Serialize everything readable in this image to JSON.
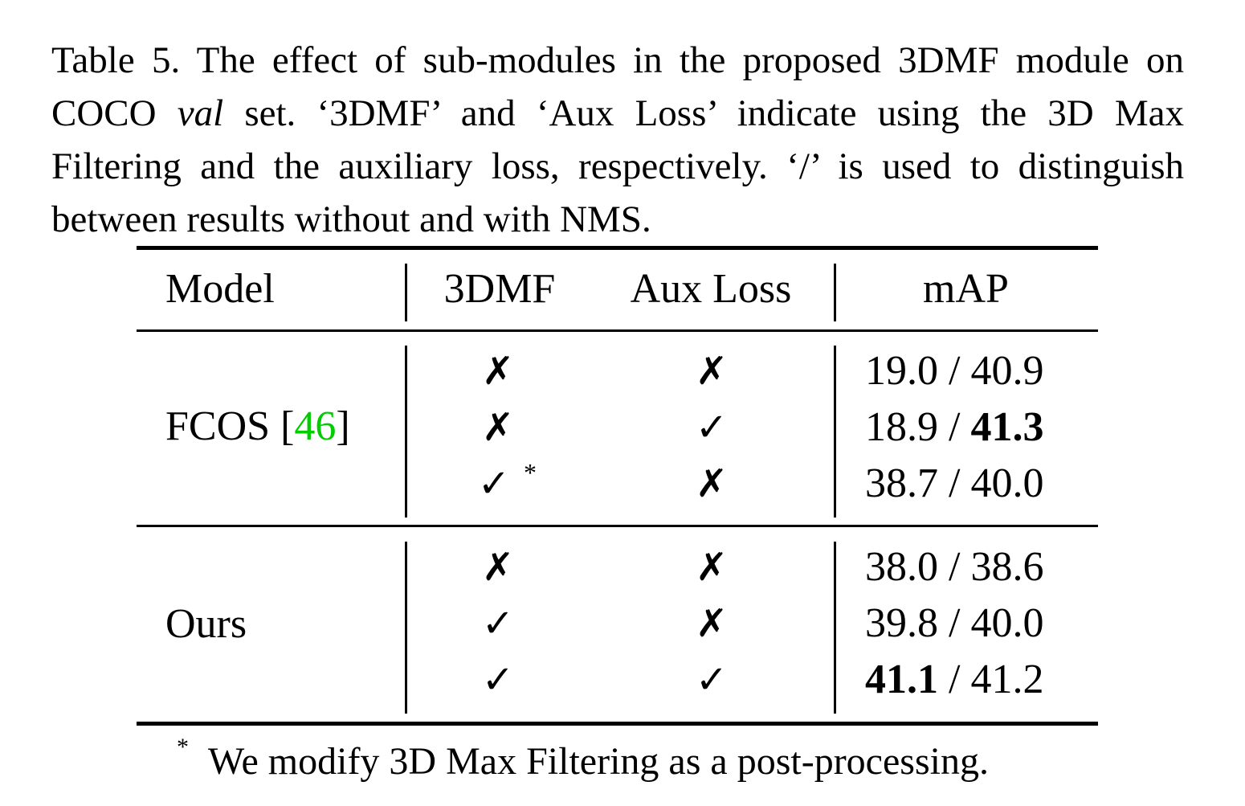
{
  "caption": {
    "part1": "Table 5. The effect of sub-modules in the proposed 3DMF module on COCO ",
    "val_word": "val",
    "part2": " set. ‘3DMF’ and ‘Aux Loss’ indicate using the 3D Max Filtering and the auxiliary loss, respectively. ‘/’ is used to distinguish between results without and with NMS."
  },
  "table": {
    "headers": {
      "model": "Model",
      "dmf": "3DMF",
      "aux": "Aux Loss",
      "map": "mAP"
    },
    "groups": [
      {
        "model": "FCOS [",
        "cite": "46",
        "model_close": "]",
        "rows": [
          {
            "dmf": "✗",
            "aux": "✗",
            "map_a": "19.0",
            "sep": " / ",
            "map_b": "40.9",
            "bold": "none"
          },
          {
            "dmf": "✗",
            "aux": "✓",
            "map_a": "18.9",
            "sep": " / ",
            "map_b": "41.3",
            "bold": "b"
          },
          {
            "dmf": "✓",
            "dmf_note": "*",
            "aux": "✗",
            "map_a": "38.7",
            "sep": " / ",
            "map_b": "40.0",
            "bold": "none"
          }
        ]
      },
      {
        "model": "Ours",
        "rows": [
          {
            "dmf": "✗",
            "aux": "✗",
            "map_a": "38.0",
            "sep": " / ",
            "map_b": "38.6",
            "bold": "none"
          },
          {
            "dmf": "✓",
            "aux": "✗",
            "map_a": "39.8",
            "sep": " / ",
            "map_b": "40.0",
            "bold": "none"
          },
          {
            "dmf": "✓",
            "aux": "✓",
            "map_a": "41.1",
            "sep": " / ",
            "map_b": "41.2",
            "bold": "a"
          }
        ]
      }
    ]
  },
  "footnote": {
    "marker": "*",
    "text": "We modify 3D Max Filtering as a post-processing."
  }
}
